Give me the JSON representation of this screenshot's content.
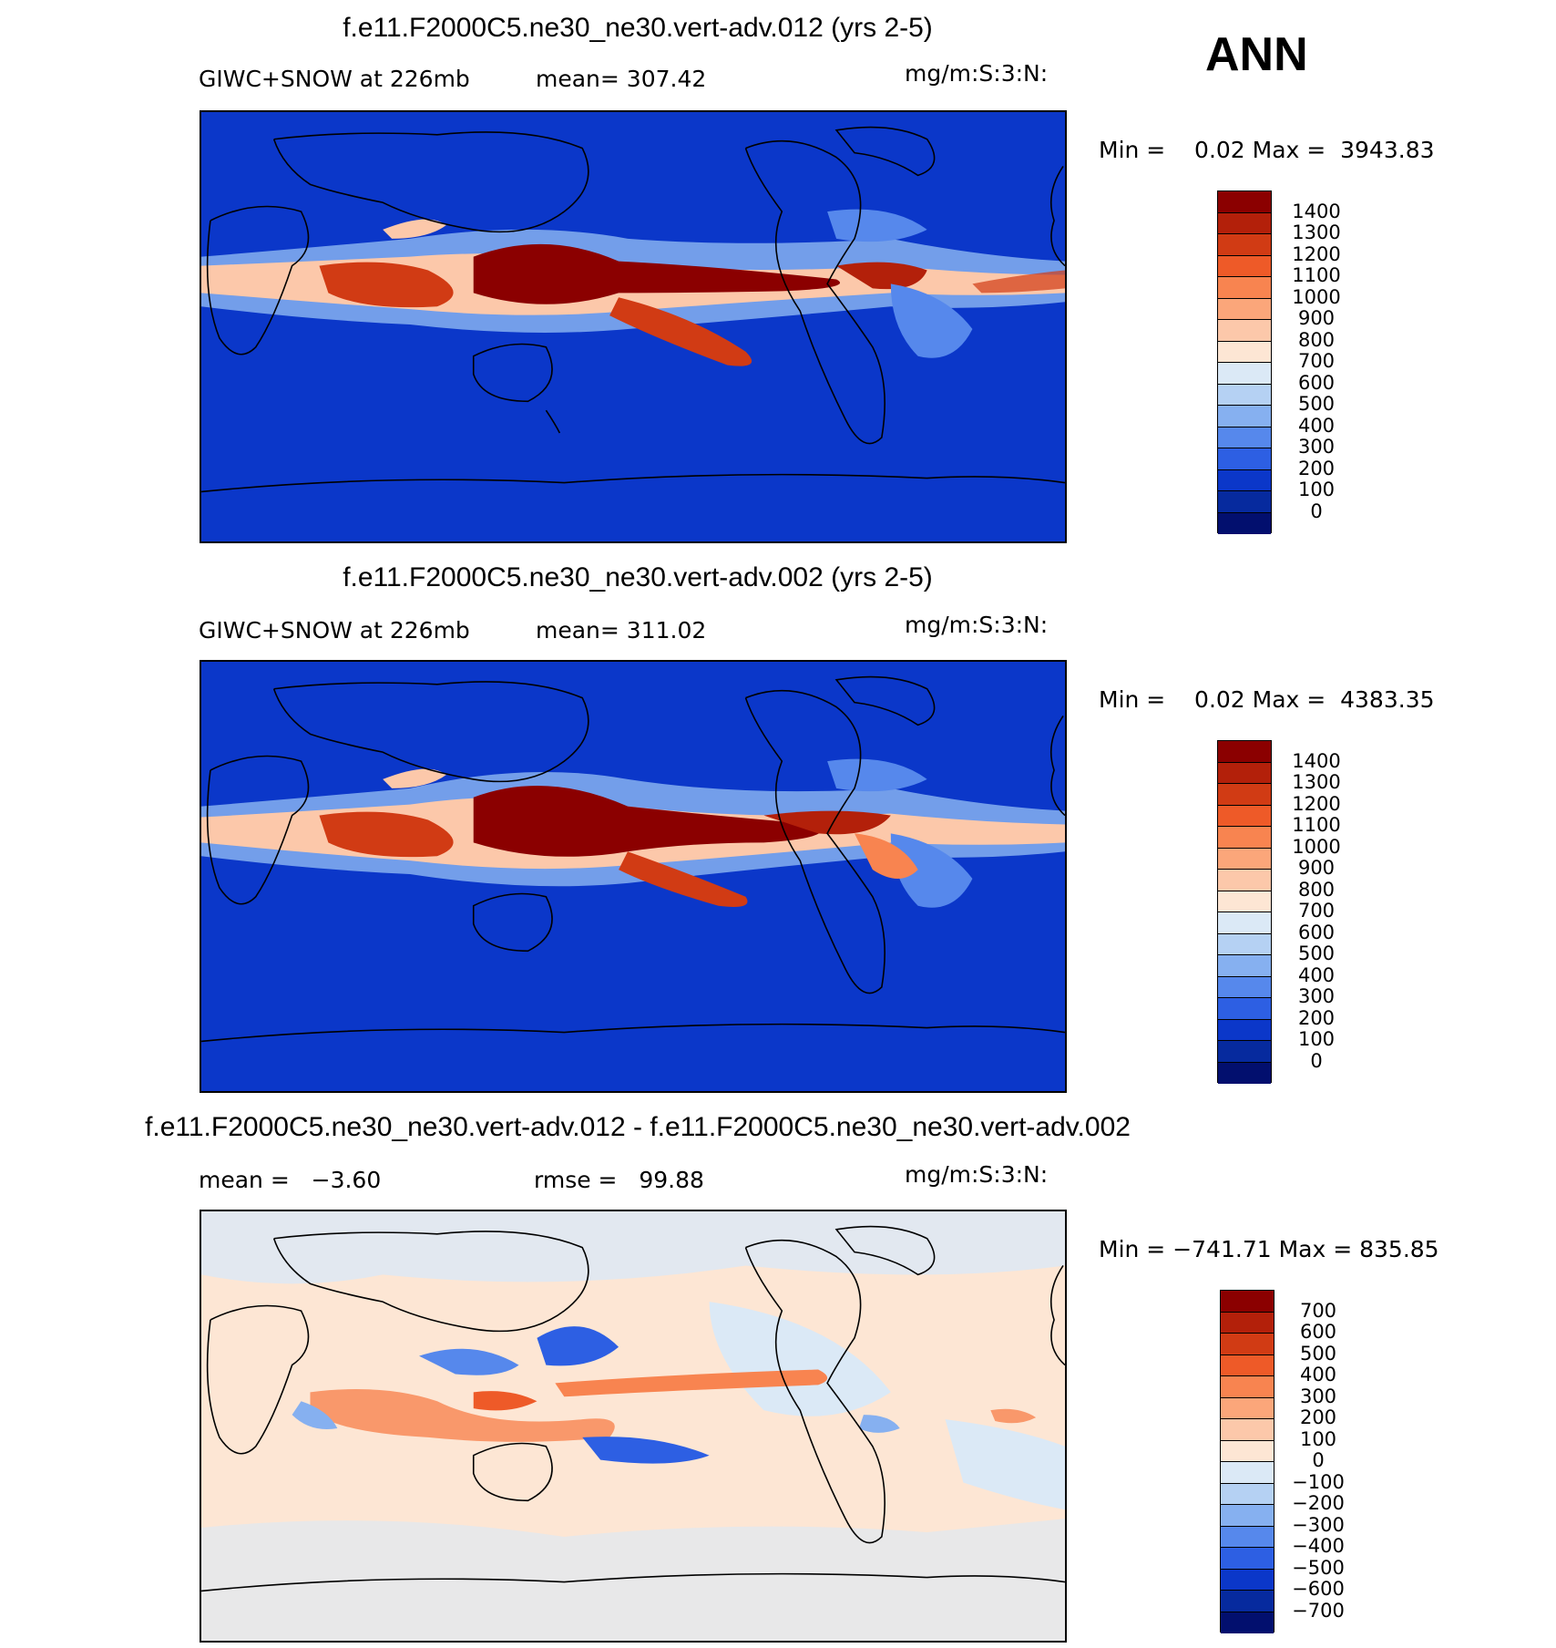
{
  "season": "ANN",
  "panels": [
    {
      "title": "f.e11.F2000C5.ne30_ne30.vert-adv.012 (yrs 2-5)",
      "subtitle_left": "GIWC+SNOW at 226mb",
      "subtitle_mid": "mean= 307.42",
      "units": "mg/m:S:3:N:",
      "minmax": "Min =    0.02 Max =  3943.83"
    },
    {
      "title": "f.e11.F2000C5.ne30_ne30.vert-adv.002 (yrs 2-5)",
      "subtitle_left": "GIWC+SNOW at 226mb",
      "subtitle_mid": "mean= 311.02",
      "units": "mg/m:S:3:N:",
      "minmax": "Min =    0.02 Max =  4383.35"
    },
    {
      "title": "f.e11.F2000C5.ne30_ne30.vert-adv.012 - f.e11.F2000C5.ne30_ne30.vert-adv.002",
      "subtitle_left": "mean =   −3.60",
      "subtitle_mid": "rmse =   99.88",
      "units": "mg/m:S:3:N:",
      "minmax": "Min = −741.71 Max = 835.85"
    }
  ],
  "colorbars": {
    "field": {
      "labels": [
        "1400",
        "1300",
        "1200",
        "1100",
        "1000",
        "900",
        "800",
        "700",
        "600",
        "500",
        "400",
        "300",
        "200",
        "100",
        "0"
      ],
      "colors": [
        "#8b0000",
        "#b3200a",
        "#d13b14",
        "#ee5a28",
        "#f88450",
        "#fba67a",
        "#fcc8aa",
        "#fde6d4",
        "#dbe9f6",
        "#b5d1f3",
        "#86b0f0",
        "#5688ec",
        "#2d5fe3",
        "#0b37c9",
        "#062a9e",
        "#020f6e"
      ]
    },
    "diff": {
      "labels": [
        "700",
        "600",
        "500",
        "400",
        "300",
        "200",
        "100",
        "0",
        "−100",
        "−200",
        "−300",
        "−400",
        "−500",
        "−600",
        "−700"
      ],
      "colors": [
        "#8b0000",
        "#b3200a",
        "#d13b14",
        "#ee5a28",
        "#f88450",
        "#fba67a",
        "#fcc8aa",
        "#fde6d4",
        "#dbe9f6",
        "#b5d1f3",
        "#86b0f0",
        "#5688ec",
        "#2d5fe3",
        "#0b37c9",
        "#062a9e",
        "#020f6e"
      ]
    }
  }
}
